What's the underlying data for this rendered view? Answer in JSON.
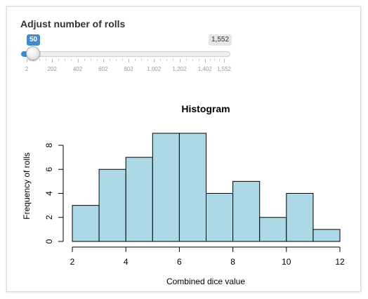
{
  "slider": {
    "label": "Adjust number of rolls",
    "min": 2,
    "max": 1552,
    "value": 50,
    "value_label": "50",
    "max_label": "1,552",
    "ticks": [
      "2",
      "202",
      "402",
      "602",
      "802",
      "1,002",
      "1,202",
      "1,402",
      "1,552"
    ],
    "tick_values": [
      2,
      202,
      402,
      602,
      802,
      1002,
      1202,
      1402,
      1552
    ],
    "accent_color": "#428bca"
  },
  "chart_data": {
    "type": "bar",
    "title": "Histogram",
    "xlabel": "Combined dice value",
    "ylabel": "Frequency of rolls",
    "bins": [
      [
        2,
        3
      ],
      [
        3,
        4
      ],
      [
        4,
        5
      ],
      [
        5,
        6
      ],
      [
        6,
        7
      ],
      [
        7,
        8
      ],
      [
        8,
        9
      ],
      [
        9,
        10
      ],
      [
        10,
        11
      ],
      [
        11,
        12
      ]
    ],
    "values": [
      3,
      6,
      7,
      9,
      9,
      4,
      5,
      2,
      4,
      1
    ],
    "xlim": [
      2,
      12
    ],
    "ylim": [
      0,
      9
    ],
    "xticks": [
      2,
      4,
      6,
      8,
      10,
      12
    ],
    "yticks": [
      0,
      2,
      4,
      6,
      8
    ],
    "bar_color": "#add8e6",
    "grid": false
  }
}
